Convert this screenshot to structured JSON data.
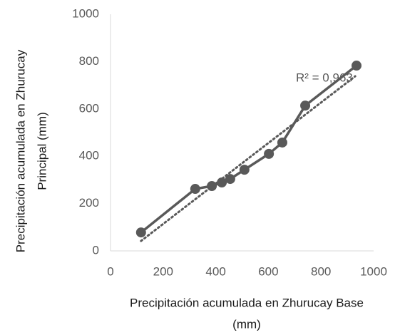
{
  "chart_data": {
    "type": "line",
    "xlabel": [
      "Precipitación acumulada en Zhurucay Base",
      "(mm)"
    ],
    "ylabel": [
      "Precipitación acumulada en Zhurucay",
      "Principal (mm)"
    ],
    "annotation": "R² = 0,963",
    "series": [
      {
        "color": "#595959",
        "x": [
          116,
          322,
          385,
          423,
          455,
          509,
          602,
          653,
          740,
          935
        ],
        "values": [
          78,
          262,
          274,
          289,
          304,
          343,
          410,
          458,
          614,
          783
        ]
      }
    ],
    "trendline": {
      "color": "#595959",
      "x": [
        116,
        930
      ],
      "values": [
        42,
        738
      ]
    },
    "xlim": [
      0,
      1000
    ],
    "xticks": [
      0,
      200,
      400,
      600,
      800,
      1000
    ],
    "ylim": [
      0,
      1000
    ],
    "yticks": [
      0,
      200,
      400,
      600,
      800,
      1000
    ],
    "grid": false
  }
}
